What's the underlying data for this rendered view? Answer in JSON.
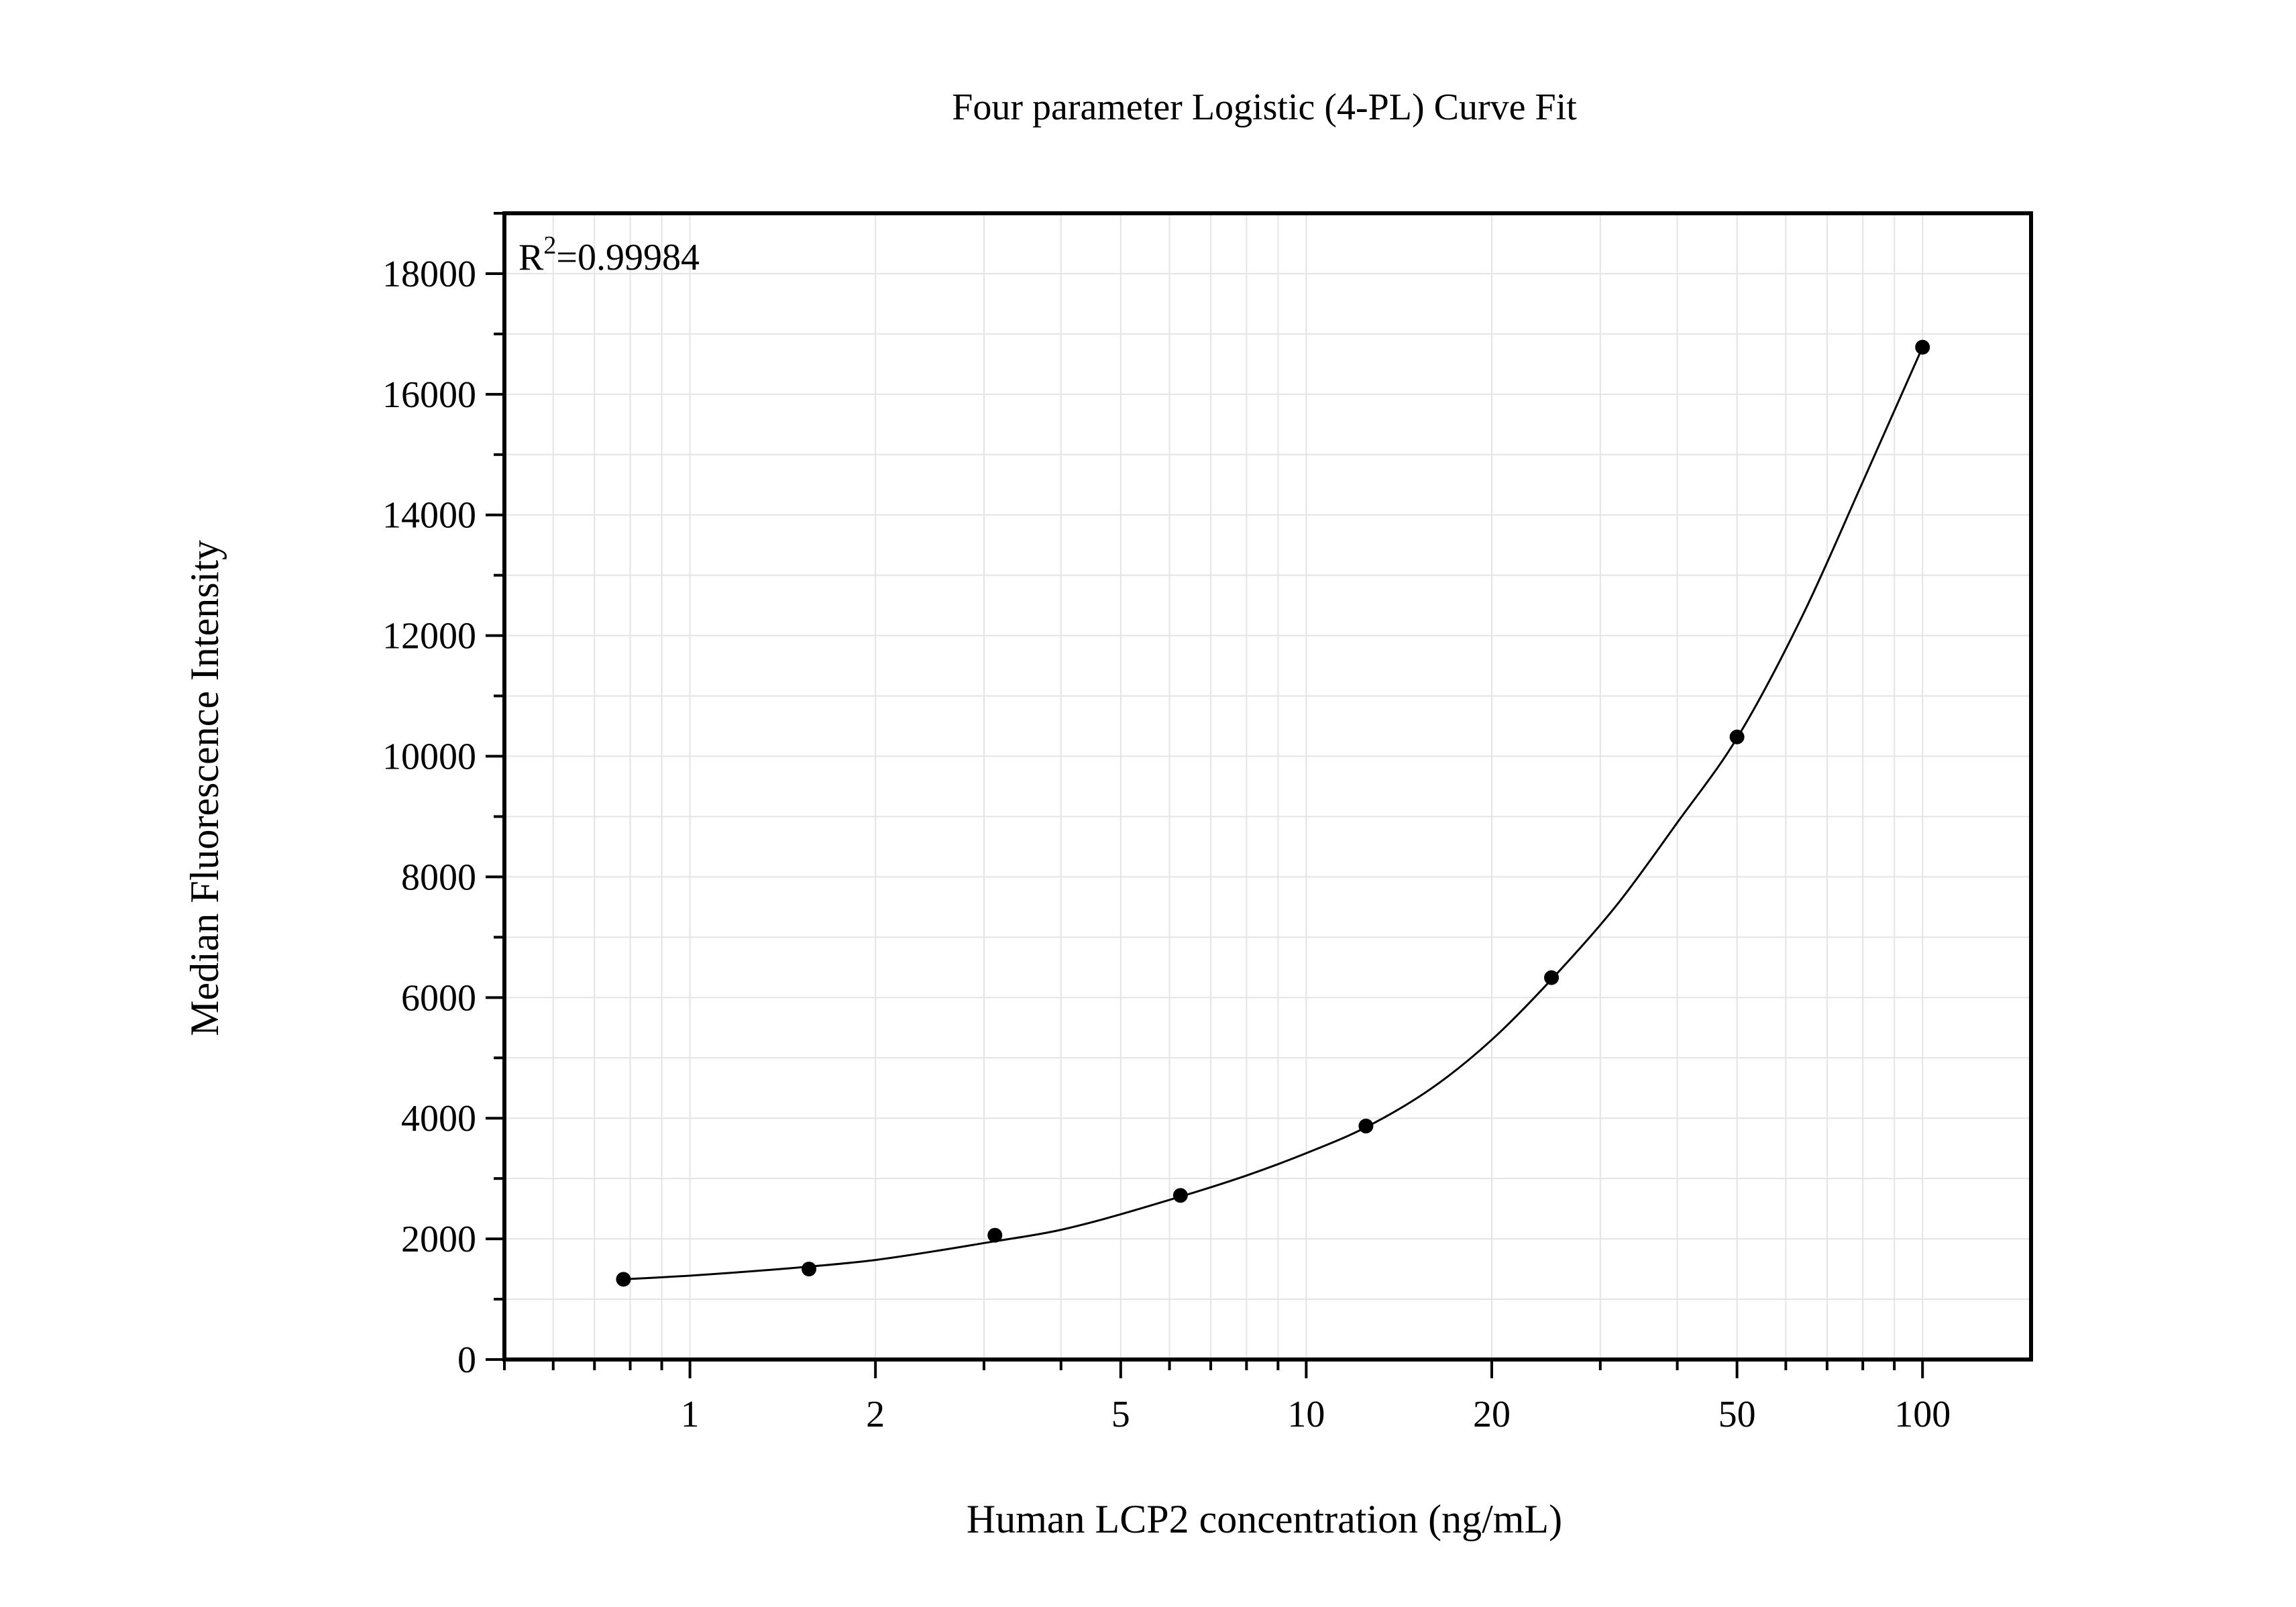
{
  "chart_data": {
    "type": "scatter",
    "title": "Four parameter Logistic (4-PL) Curve Fit",
    "xlabel": "Human LCP2 concentration (ng/mL)",
    "ylabel": "Median Fluorescence Intensity",
    "x_scale": "log",
    "xlim": [
      0.5,
      150
    ],
    "ylim": [
      0,
      19000
    ],
    "x_ticks": [
      1,
      2,
      5,
      10,
      20,
      50,
      100
    ],
    "x_tick_labels": [
      "1",
      "2",
      "5",
      "10",
      "20",
      "50",
      "100"
    ],
    "y_ticks": [
      0,
      2000,
      4000,
      6000,
      8000,
      10000,
      12000,
      14000,
      16000,
      18000
    ],
    "y_tick_labels": [
      "0",
      "2000",
      "4000",
      "6000",
      "8000",
      "10000",
      "12000",
      "14000",
      "16000",
      "18000"
    ],
    "grid": true,
    "annotation": {
      "base": "R",
      "sup": "2",
      "value": "=0.99984"
    },
    "points": {
      "x": [
        0.78,
        1.56,
        3.125,
        6.25,
        12.5,
        25,
        50,
        100
      ],
      "y": [
        1330,
        1500,
        2060,
        2720,
        3870,
        6330,
        10320,
        16780
      ]
    },
    "fit_curve": {
      "x": [
        0.78,
        1.0,
        1.56,
        2.0,
        3.125,
        4.0,
        6.25,
        8.0,
        10.0,
        12.5,
        16.0,
        20.0,
        25.0,
        32.0,
        40.0,
        50.0,
        64.0,
        80.0,
        100.0
      ],
      "y": [
        1330,
        1390,
        1540,
        1650,
        1960,
        2150,
        2700,
        3050,
        3420,
        3850,
        4500,
        5300,
        6300,
        7550,
        8900,
        10300,
        12350,
        14550,
        16780
      ]
    },
    "colors": {
      "marker": "#000000",
      "line": "#000000",
      "grid": "#e4e4e4",
      "frame": "#000000"
    }
  }
}
